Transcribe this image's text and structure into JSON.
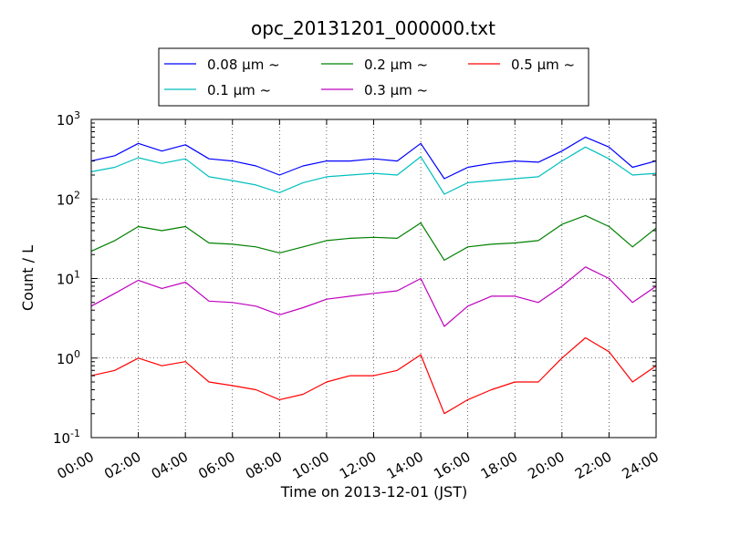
{
  "chart_data": {
    "type": "line",
    "title": "opc_20131201_000000.txt",
    "xlabel": "Time on 2013-12-01 (JST)",
    "ylabel": "Count / L",
    "y_scale": "log",
    "ylim": [
      0.1,
      1000
    ],
    "y_tick_labels": [
      {
        "base": "10",
        "exp": "-1"
      },
      {
        "base": "10",
        "exp": "0"
      },
      {
        "base": "10",
        "exp": "1"
      },
      {
        "base": "10",
        "exp": "2"
      },
      {
        "base": "10",
        "exp": "3"
      }
    ],
    "x_tick_labels": [
      "00:00",
      "02:00",
      "04:00",
      "06:00",
      "08:00",
      "10:00",
      "12:00",
      "14:00",
      "16:00",
      "18:00",
      "20:00",
      "22:00",
      "24:00"
    ],
    "grid": true,
    "legend_position": "top",
    "x_hours": [
      0,
      1,
      2,
      3,
      4,
      5,
      6,
      7,
      8,
      9,
      10,
      11,
      12,
      13,
      14,
      15,
      16,
      17,
      18,
      19,
      20,
      21,
      22,
      23,
      24
    ],
    "series": [
      {
        "name": "0.08 μm ~",
        "color": "#0000ff",
        "values": [
          300,
          350,
          500,
          400,
          480,
          320,
          300,
          260,
          200,
          260,
          300,
          300,
          320,
          300,
          500,
          180,
          250,
          280,
          300,
          290,
          400,
          600,
          450,
          250,
          300
        ]
      },
      {
        "name": "0.1 μm ~",
        "color": "#00bfbf",
        "values": [
          220,
          250,
          330,
          280,
          320,
          190,
          170,
          150,
          120,
          160,
          190,
          200,
          210,
          200,
          340,
          115,
          160,
          170,
          180,
          190,
          300,
          450,
          320,
          200,
          210
        ]
      },
      {
        "name": "0.2 μm ~",
        "color": "#008000",
        "values": [
          22,
          30,
          45,
          40,
          45,
          28,
          27,
          25,
          21,
          25,
          30,
          32,
          33,
          32,
          50,
          17,
          25,
          27,
          28,
          30,
          48,
          62,
          45,
          25,
          43
        ]
      },
      {
        "name": "0.3 μm ~",
        "color": "#bf00bf",
        "values": [
          4.5,
          6.5,
          9.5,
          7.5,
          9.0,
          5.2,
          5.0,
          4.5,
          3.5,
          4.3,
          5.5,
          6.0,
          6.5,
          7.0,
          10.0,
          2.5,
          4.5,
          6.0,
          6.0,
          5.0,
          8.0,
          14,
          10,
          5.0,
          8.0
        ]
      },
      {
        "name": "0.5 μm ~",
        "color": "#ff0000",
        "values": [
          0.6,
          0.7,
          1.0,
          0.8,
          0.9,
          0.5,
          0.45,
          0.4,
          0.3,
          0.35,
          0.5,
          0.6,
          0.6,
          0.7,
          1.1,
          0.2,
          0.3,
          0.4,
          0.5,
          0.5,
          1.0,
          1.8,
          1.2,
          0.5,
          0.8
        ]
      }
    ]
  }
}
